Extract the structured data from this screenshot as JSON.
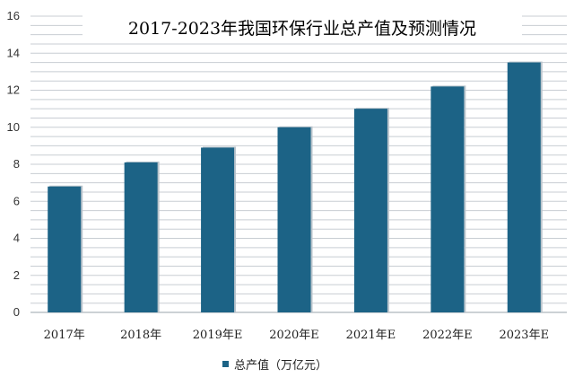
{
  "chart_data": {
    "type": "bar",
    "title": "2017-2023年我国环保行业总产值及预测情况",
    "categories": [
      "2017年",
      "2018年",
      "2019年E",
      "2020年E",
      "2021年E",
      "2022年E",
      "2023年E"
    ],
    "series": [
      {
        "name": "总产值（万亿元）",
        "values": [
          6.8,
          8.1,
          8.9,
          10.0,
          11.0,
          12.2,
          13.5
        ]
      }
    ],
    "ylim": [
      0,
      16
    ],
    "yticks": [
      0,
      2,
      4,
      6,
      8,
      10,
      12,
      14,
      16
    ],
    "grid": true,
    "legend_position": "bottom",
    "colors": {
      "bar": "#1c6386",
      "grid": "#c8cdd3"
    }
  }
}
